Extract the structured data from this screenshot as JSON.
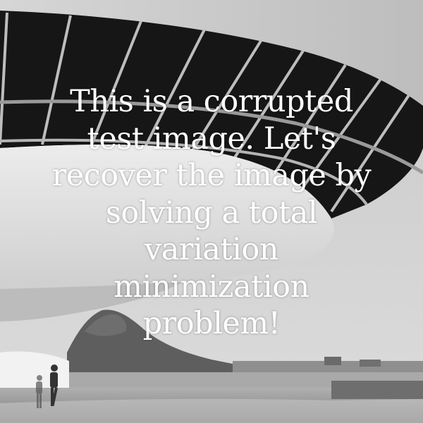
{
  "overlay": {
    "lines": [
      "This is a corrupted",
      "test image. Let's",
      "recover the image by",
      "solving a total",
      "variation",
      "minimization",
      "problem!"
    ],
    "color": "#ffffff"
  },
  "photo": {
    "palette": {
      "sky": "#cfcfcf",
      "concrete": "#e3e3e3",
      "window_dark": "#141414",
      "mountain": "#5b5b5b",
      "ground": "#9a9a9a"
    }
  }
}
